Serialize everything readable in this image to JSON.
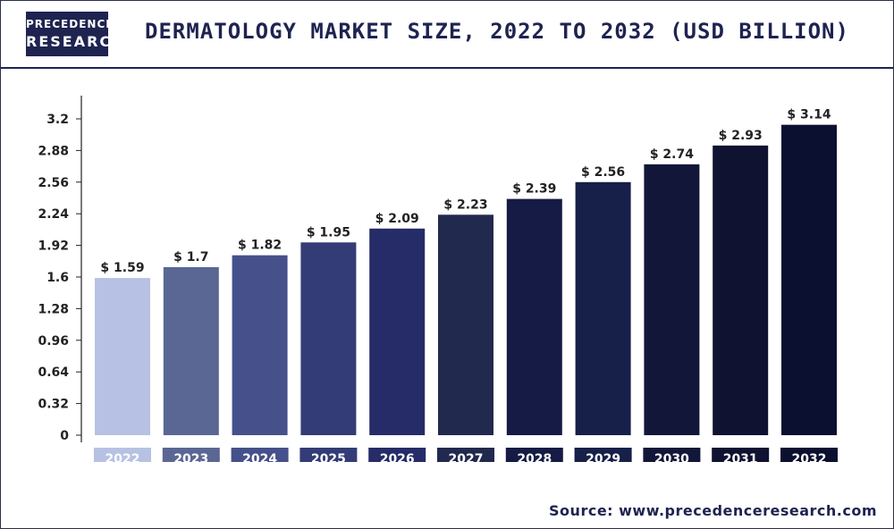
{
  "header": {
    "logo_line1": "PRECEDENCE",
    "logo_line2": "RESEARCH",
    "title": "DERMATOLOGY MARKET SIZE, 2022 TO 2032 (USD BILLION)"
  },
  "source": "Source: www.precedenceresearch.com",
  "colors": {
    "navy": "#1e2350",
    "bars": [
      "#b7c1e3",
      "#5a6794",
      "#46508a",
      "#333c76",
      "#252c68",
      "#22294f",
      "#151b45",
      "#172048",
      "#121739",
      "#0f1230",
      "#0c1030"
    ]
  },
  "chart_data": {
    "type": "bar",
    "title": "DERMATOLOGY MARKET SIZE, 2022 TO 2032 (USD BILLION)",
    "categories": [
      "2022",
      "2023",
      "2024",
      "2025",
      "2026",
      "2027",
      "2028",
      "2029",
      "2030",
      "2031",
      "2032"
    ],
    "values": [
      1.59,
      1.7,
      1.82,
      1.95,
      2.09,
      2.23,
      2.39,
      2.56,
      2.74,
      2.93,
      3.14
    ],
    "value_labels": [
      "$ 1.59",
      "$ 1.7",
      "$ 1.82",
      "$ 1.95",
      "$ 2.09",
      "$ 2.23",
      "$ 2.39",
      "$ 2.56",
      "$ 2.74",
      "$ 2.93",
      "$ 3.14"
    ],
    "yticks": [
      "0",
      "0.32",
      "0.64",
      "0.96",
      "1.28",
      "1.6",
      "1.92",
      "2.24",
      "2.56",
      "2.88",
      "3.2"
    ],
    "ylim": [
      0,
      3.2
    ],
    "xlabel": "",
    "ylabel": "",
    "grid": false
  }
}
